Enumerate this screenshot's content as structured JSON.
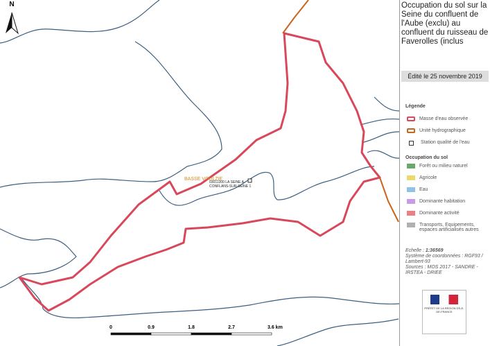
{
  "north": "N",
  "title": "Occupation du sol sur la Seine du confluent de l'Aube (exclu) au confluent du ruisseau de Faverolles (inclus",
  "edited": "Édité le 25 novembre 2019",
  "map_labels": {
    "basin": "BASSE VOULZIE",
    "station": "03011300 LA SEINE A CONFLANS-SUR-SEINE 1"
  },
  "scale_bar": {
    "ticks": [
      "0",
      "0.9",
      "1.8",
      "2.7"
    ],
    "last": "3.6 km"
  },
  "legend": {
    "title": "Légende",
    "lines": [
      {
        "label": "Masse d'eau observée",
        "color": "#d9485a",
        "kind": "box"
      },
      {
        "label": "Unité hydrographique",
        "color": "#c8651b",
        "kind": "box"
      },
      {
        "label": "Station qualité de l'eau",
        "color": "#333333",
        "kind": "point"
      }
    ],
    "landuse_title": "Occupation du sol",
    "landuse": [
      {
        "label": "Forêt ou milieu naturel",
        "color": "#6aa86a"
      },
      {
        "label": "Agricole",
        "color": "#ecd96b"
      },
      {
        "label": "Eau",
        "color": "#8fc2e6"
      },
      {
        "label": "Dominante habitation",
        "color": "#c79be8"
      },
      {
        "label": "Dominante activité",
        "color": "#ec8080"
      },
      {
        "label": "Transports, Equipements, espaces artificialisés autres",
        "color": "#b0b0b0"
      }
    ]
  },
  "info": {
    "scale_label": "Echelle :",
    "scale": "1:36569",
    "crs": "Système de coordonnées : RGF93 / Lambert-93",
    "sources": "Sources : MOS 2017 - SANDRE - IRSTEA - DRIEE"
  },
  "logo": "PRÉFET DE LA RÉGION D'ÎLE-DE-FRANCE"
}
